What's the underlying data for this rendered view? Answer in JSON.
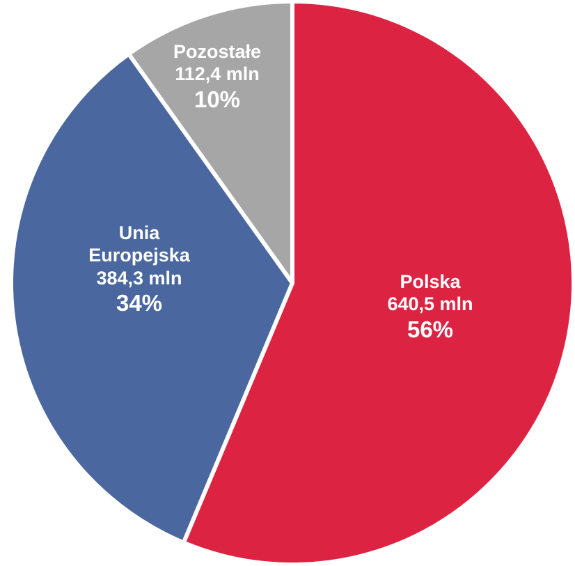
{
  "chart_data": {
    "type": "pie",
    "categories": [
      "Polska",
      "Unia Europejska",
      "Pozostałe"
    ],
    "values": [
      640.5,
      384.3,
      112.4
    ],
    "value_labels": [
      "640,5 mln",
      "384,3 mln",
      "112,4 mln"
    ],
    "percentages": [
      56,
      34,
      10
    ],
    "percentage_labels": [
      "56%",
      "34%",
      "10%"
    ],
    "colors": [
      "#dc2342",
      "#4a67a0",
      "#a6a6a6"
    ]
  }
}
